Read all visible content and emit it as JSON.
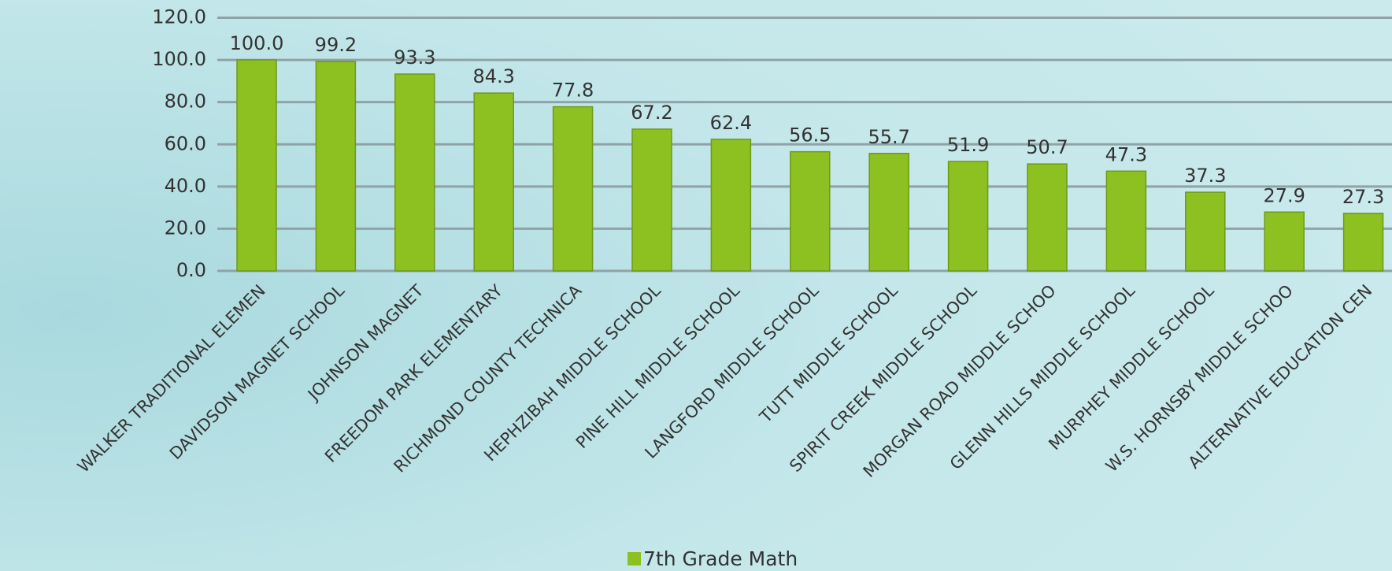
{
  "chart_data": {
    "type": "bar",
    "categories": [
      "WALKER TRADITIONAL ELEMEN",
      "DAVIDSON MAGNET SCHOOL",
      "JOHNSON MAGNET",
      "FREEDOM PARK ELEMENTARY",
      "RICHMOND COUNTY TECHNICA",
      "HEPHZIBAH MIDDLE SCHOOL",
      "PINE HILL MIDDLE SCHOOL",
      "LANGFORD MIDDLE SCHOOL",
      "TUTT MIDDLE SCHOOL",
      "SPIRIT CREEK MIDDLE SCHOOL",
      "MORGAN ROAD MIDDLE SCHOO",
      "GLENN HILLS MIDDLE SCHOOL",
      "MURPHEY MIDDLE SCHOOL",
      "W.S. HORNSBY MIDDLE SCHOO",
      "ALTERNATIVE EDUCATION CEN"
    ],
    "series": [
      {
        "name": "7th Grade Math",
        "color": "#8dc021",
        "values": [
          100.0,
          99.2,
          93.3,
          84.3,
          77.8,
          67.2,
          62.4,
          56.5,
          55.7,
          51.9,
          50.7,
          47.3,
          37.3,
          27.9,
          27.3
        ],
        "value_labels": [
          "100.0",
          "99.2",
          "93.3",
          "84.3",
          "77.8",
          "67.2",
          "62.4",
          "56.5",
          "55.7",
          "51.9",
          "50.7",
          "47.3",
          "37.3",
          "27.9",
          "27.3"
        ]
      }
    ],
    "ylim": [
      0,
      120
    ],
    "yticks": [
      {
        "value": 0,
        "label": "0.0"
      },
      {
        "value": 20,
        "label": "20.0"
      },
      {
        "value": 40,
        "label": "40.0"
      },
      {
        "value": 60,
        "label": "60.0"
      },
      {
        "value": 80,
        "label": "80.0"
      },
      {
        "value": 100,
        "label": "100.0"
      },
      {
        "value": 120,
        "label": "120.0"
      }
    ],
    "grid": true,
    "legend": "bottom"
  }
}
